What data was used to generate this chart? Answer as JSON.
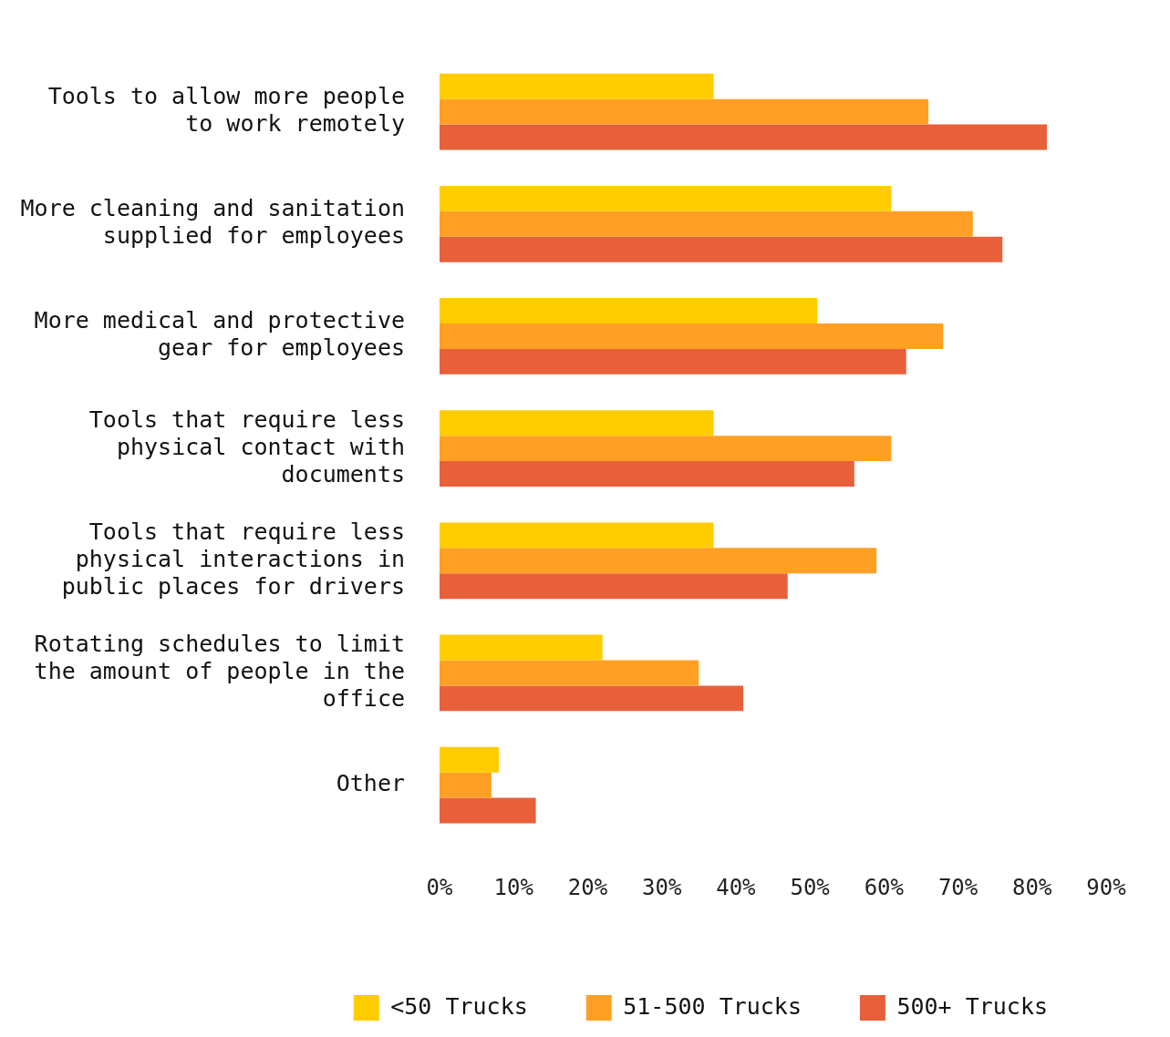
{
  "chart_data": {
    "type": "bar",
    "orientation": "horizontal",
    "categories": [
      "Tools to allow more people to work remotely",
      "More cleaning and sanitation supplied for employees",
      "More medical and protective gear for employees",
      "Tools that require less physical contact with documents",
      "Tools that require less physical interactions in public places for drivers",
      "Rotating schedules to limit the amount of people in the office",
      "Other"
    ],
    "series": [
      {
        "name": "<50 Trucks",
        "color": "#ffcc00",
        "values": [
          37,
          61,
          51,
          37,
          37,
          22,
          8
        ]
      },
      {
        "name": "51-500 Trucks",
        "color": "#ffa024",
        "values": [
          66,
          72,
          68,
          61,
          59,
          35,
          7
        ]
      },
      {
        "name": "500+ Trucks",
        "color": "#e8603a",
        "values": [
          82,
          76,
          63,
          56,
          47,
          41,
          13
        ]
      }
    ],
    "xlim": [
      0,
      90
    ],
    "xticks": [
      {
        "value": 0,
        "label": "0%"
      },
      {
        "value": 10,
        "label": "10%"
      },
      {
        "value": 20,
        "label": "20%"
      },
      {
        "value": 30,
        "label": "30%"
      },
      {
        "value": 40,
        "label": "40%"
      },
      {
        "value": 50,
        "label": "50%"
      },
      {
        "value": 60,
        "label": "60%"
      },
      {
        "value": 70,
        "label": "70%"
      },
      {
        "value": 80,
        "label": "80%"
      },
      {
        "value": 90,
        "label": "90%"
      }
    ],
    "grid": false,
    "legend": "bottom"
  }
}
